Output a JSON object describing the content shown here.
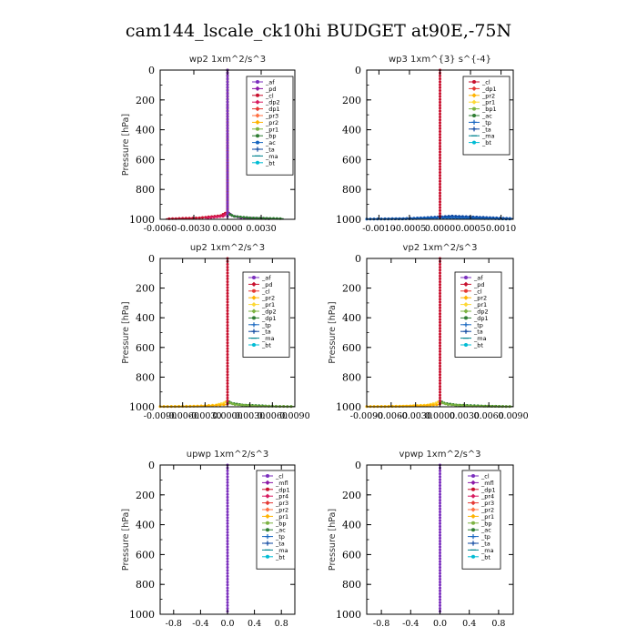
{
  "figure": {
    "title": "cam144_lscale_ck10hi  BUDGET at90E,-75N"
  },
  "chart_data": [
    {
      "type": "line",
      "title": "wp2   1xm^2/s^3",
      "ylabel": "Pressure [hPa]",
      "xlim": [
        -0.006,
        0.006
      ],
      "ylim": [
        1000,
        0
      ],
      "xticks": [
        -0.006,
        -0.003,
        0.0,
        0.003
      ],
      "xtick_labels": [
        "-0.0060",
        "-0.0030",
        "0.0000",
        "0.0030"
      ],
      "yticks": [
        0,
        200,
        400,
        600,
        800,
        1000
      ],
      "ytick_labels": [
        "0",
        "200",
        "400",
        "600",
        "800",
        "1000"
      ],
      "legend_position": "top-right",
      "series": [
        {
          "name": "_af",
          "color": "#7b2fbe",
          "marker": "dot"
        },
        {
          "name": "_pd",
          "color": "#8c1aa8",
          "marker": "diamond"
        },
        {
          "name": "_cl",
          "color": "#c8102e",
          "marker": "dot"
        },
        {
          "name": "_dp2",
          "color": "#d81b60",
          "marker": "diamond"
        },
        {
          "name": "_dp1",
          "color": "#e53935",
          "marker": "diamond"
        },
        {
          "name": "_pr3",
          "color": "#ff7043",
          "marker": "diamond"
        },
        {
          "name": "_pr2",
          "color": "#ffb300",
          "marker": "diamond"
        },
        {
          "name": "_pr1",
          "color": "#7cb342",
          "marker": "dot"
        },
        {
          "name": "_bp",
          "color": "#2e7d32",
          "marker": "dot"
        },
        {
          "name": "_ac",
          "color": "#1565c0",
          "marker": "dot"
        },
        {
          "name": "_ta",
          "color": "#0d47a1",
          "marker": "plus"
        },
        {
          "name": "_ma",
          "color": "#00838f",
          "marker": "dash"
        },
        {
          "name": "_bt",
          "color": "#00bcd4",
          "marker": "dot"
        }
      ],
      "curves": [
        {
          "color": "#8c1aa8",
          "points": [
            [
              0,
              0
            ],
            [
              0,
              950
            ],
            [
              0.0004,
              975
            ],
            [
              0.0012,
              990
            ],
            [
              0.004,
              997
            ]
          ]
        },
        {
          "color": "#c8102e",
          "points": [
            [
              0,
              0
            ],
            [
              0,
              950
            ],
            [
              -0.0006,
              975
            ],
            [
              -0.0025,
              990
            ],
            [
              -0.0055,
              997
            ]
          ]
        },
        {
          "color": "#d81b60",
          "points": [
            [
              0,
              0
            ],
            [
              0,
              955
            ],
            [
              -0.0004,
              980
            ],
            [
              -0.002,
              992
            ]
          ]
        },
        {
          "color": "#2e7d32",
          "points": [
            [
              0,
              0
            ],
            [
              0,
              960
            ],
            [
              0.0006,
              980
            ],
            [
              0.002,
              990
            ],
            [
              0.005,
              996
            ]
          ]
        },
        {
          "color": "#7b2fbe",
          "points": [
            [
              0,
              0
            ],
            [
              0,
              1000
            ]
          ]
        }
      ]
    },
    {
      "type": "line",
      "title": "wp3   1xm^{3} s^{-4}",
      "ylabel": "",
      "xlim": [
        -0.0012,
        0.0012
      ],
      "ylim": [
        1000,
        0
      ],
      "xticks": [
        -0.001,
        -0.0005,
        0.0,
        0.0005,
        0.001
      ],
      "xtick_labels": [
        "-0.0010",
        "-0.0005",
        "0.0000",
        "0.0005",
        "0.0010"
      ],
      "yticks": [
        0,
        200,
        400,
        600,
        800,
        1000
      ],
      "ytick_labels": [
        "0",
        "200",
        "400",
        "600",
        "800",
        "1000"
      ],
      "legend_position": "top-right",
      "series": [
        {
          "name": "_cl",
          "color": "#c8102e",
          "marker": "dot"
        },
        {
          "name": "_dp1",
          "color": "#e53935",
          "marker": "diamond"
        },
        {
          "name": "_pr2",
          "color": "#ffb300",
          "marker": "diamond"
        },
        {
          "name": "_pr1",
          "color": "#fdd835",
          "marker": "diamond"
        },
        {
          "name": "_bp1",
          "color": "#7cb342",
          "marker": "dot"
        },
        {
          "name": "_ac",
          "color": "#2e7d32",
          "marker": "dot"
        },
        {
          "name": "_tp",
          "color": "#1565c0",
          "marker": "plus"
        },
        {
          "name": "_ta",
          "color": "#0d47a1",
          "marker": "plus"
        },
        {
          "name": "_ma",
          "color": "#00838f",
          "marker": "dash"
        },
        {
          "name": "_bt",
          "color": "#00bcd4",
          "marker": "dot"
        }
      ],
      "curves": [
        {
          "color": "#0d47a1",
          "points": [
            [
              -0.0012,
              998
            ],
            [
              -0.0006,
              995
            ],
            [
              -0.0002,
              988
            ],
            [
              0.0002,
              978
            ],
            [
              0.0006,
              985
            ],
            [
              0.0012,
              995
            ]
          ]
        },
        {
          "color": "#1565c0",
          "points": [
            [
              -0.0012,
              999
            ],
            [
              -0.0005,
              997
            ],
            [
              0.0,
              990
            ],
            [
              0.0005,
              993
            ],
            [
              0.0012,
              999
            ]
          ]
        },
        {
          "color": "#c8102e",
          "points": [
            [
              0,
              0
            ],
            [
              0,
              1000
            ]
          ]
        }
      ]
    },
    {
      "type": "line",
      "title": "up2   1xm^2/s^3",
      "ylabel": "Pressure [hPa]",
      "xlim": [
        -0.009,
        0.009
      ],
      "ylim": [
        1000,
        0
      ],
      "xticks": [
        -0.009,
        -0.006,
        -0.003,
        0.0,
        0.003,
        0.006,
        0.009
      ],
      "xtick_labels": [
        "-0.0090",
        "-0.0060",
        "-0.0030",
        "0.0000",
        "0.0030",
        "0.0060",
        "0.0090"
      ],
      "yticks": [
        0,
        200,
        400,
        600,
        800,
        1000
      ],
      "ytick_labels": [
        "0",
        "200",
        "400",
        "600",
        "800",
        "1000"
      ],
      "legend_position": "top-right",
      "series": [
        {
          "name": "_af",
          "color": "#7b2fbe",
          "marker": "dot"
        },
        {
          "name": "_pd",
          "color": "#c8102e",
          "marker": "diamond"
        },
        {
          "name": "_cl",
          "color": "#e53935",
          "marker": "dot"
        },
        {
          "name": "_pr2",
          "color": "#ffb300",
          "marker": "diamond"
        },
        {
          "name": "_pr1",
          "color": "#fdd835",
          "marker": "diamond"
        },
        {
          "name": "_dp2",
          "color": "#7cb342",
          "marker": "diamond"
        },
        {
          "name": "_dp1",
          "color": "#2e7d32",
          "marker": "dot"
        },
        {
          "name": "_tp",
          "color": "#1565c0",
          "marker": "plus"
        },
        {
          "name": "_ta",
          "color": "#0d47a1",
          "marker": "plus"
        },
        {
          "name": "_ma",
          "color": "#00838f",
          "marker": "dash"
        },
        {
          "name": "_bt",
          "color": "#00bcd4",
          "marker": "dot"
        }
      ],
      "curves": [
        {
          "color": "#fdd835",
          "points": [
            [
              -0.009,
              998
            ],
            [
              -0.004,
              995
            ],
            [
              -0.0015,
              988
            ],
            [
              -0.0005,
              975
            ],
            [
              0,
              960
            ]
          ]
        },
        {
          "color": "#ffb300",
          "points": [
            [
              -0.009,
              999
            ],
            [
              -0.005,
              997
            ],
            [
              -0.002,
              992
            ],
            [
              0,
              985
            ]
          ]
        },
        {
          "color": "#2e7d32",
          "points": [
            [
              0,
              960
            ],
            [
              0.0005,
              975
            ],
            [
              0.002,
              988
            ],
            [
              0.006,
              996
            ],
            [
              0.009,
              998
            ]
          ]
        },
        {
          "color": "#7cb342",
          "points": [
            [
              0,
              970
            ],
            [
              0.001,
              985
            ],
            [
              0.004,
              995
            ],
            [
              0.009,
              999
            ]
          ]
        },
        {
          "color": "#c8102e",
          "points": [
            [
              0,
              0
            ],
            [
              0,
              1000
            ]
          ]
        }
      ]
    },
    {
      "type": "line",
      "title": "vp2   1xm^2/s^3",
      "ylabel": "Pressure [hPa]",
      "xlim": [
        -0.009,
        0.009
      ],
      "ylim": [
        1000,
        0
      ],
      "xticks": [
        -0.009,
        -0.006,
        -0.003,
        0.0,
        0.003,
        0.006,
        0.009
      ],
      "xtick_labels": [
        "-0.0090",
        "-0.0060",
        "-0.0030",
        "0.0000",
        "0.0030",
        "0.0060",
        "0.0090"
      ],
      "yticks": [
        0,
        200,
        400,
        600,
        800,
        1000
      ],
      "ytick_labels": [
        "0",
        "200",
        "400",
        "600",
        "800",
        "1000"
      ],
      "legend_position": "top-right",
      "series": [
        {
          "name": "_af",
          "color": "#7b2fbe",
          "marker": "dot"
        },
        {
          "name": "_pd",
          "color": "#c8102e",
          "marker": "diamond"
        },
        {
          "name": "_cl",
          "color": "#e53935",
          "marker": "dot"
        },
        {
          "name": "_pr2",
          "color": "#ffb300",
          "marker": "diamond"
        },
        {
          "name": "_pr1",
          "color": "#fdd835",
          "marker": "diamond"
        },
        {
          "name": "_dp2",
          "color": "#7cb342",
          "marker": "diamond"
        },
        {
          "name": "_dp1",
          "color": "#2e7d32",
          "marker": "dot"
        },
        {
          "name": "_tp",
          "color": "#1565c0",
          "marker": "plus"
        },
        {
          "name": "_ta",
          "color": "#0d47a1",
          "marker": "plus"
        },
        {
          "name": "_ma",
          "color": "#00838f",
          "marker": "dash"
        },
        {
          "name": "_bt",
          "color": "#00bcd4",
          "marker": "dot"
        }
      ],
      "curves": [
        {
          "color": "#fdd835",
          "points": [
            [
              -0.009,
              998
            ],
            [
              -0.004,
              995
            ],
            [
              -0.0015,
              988
            ],
            [
              -0.0005,
              975
            ],
            [
              0,
              960
            ]
          ]
        },
        {
          "color": "#ffb300",
          "points": [
            [
              -0.009,
              999
            ],
            [
              -0.005,
              997
            ],
            [
              -0.002,
              992
            ],
            [
              0,
              985
            ]
          ]
        },
        {
          "color": "#2e7d32",
          "points": [
            [
              0,
              960
            ],
            [
              0.0005,
              975
            ],
            [
              0.002,
              988
            ],
            [
              0.006,
              996
            ],
            [
              0.009,
              998
            ]
          ]
        },
        {
          "color": "#7cb342",
          "points": [
            [
              0,
              970
            ],
            [
              0.001,
              985
            ],
            [
              0.004,
              995
            ],
            [
              0.009,
              999
            ]
          ]
        },
        {
          "color": "#c8102e",
          "points": [
            [
              0,
              0
            ],
            [
              0,
              1000
            ]
          ]
        }
      ]
    },
    {
      "type": "line",
      "title": "upwp   1xm^2/s^3",
      "ylabel": "Pressure [hPa]",
      "xlim": [
        -1.0,
        1.0
      ],
      "ylim": [
        1000,
        0
      ],
      "xticks": [
        -0.8,
        -0.4,
        0.0,
        0.4,
        0.8
      ],
      "xtick_labels": [
        "-0.8",
        "-0.4",
        "0.0",
        "0.4",
        "0.8"
      ],
      "yticks": [
        0,
        200,
        400,
        600,
        800,
        1000
      ],
      "ytick_labels": [
        "0",
        "200",
        "400",
        "600",
        "800",
        "1000"
      ],
      "legend_position": "top-right",
      "series": [
        {
          "name": "_cl",
          "color": "#7b2fbe",
          "marker": "dot"
        },
        {
          "name": "_mfl",
          "color": "#8c1aa8",
          "marker": "diamond"
        },
        {
          "name": "_dp1",
          "color": "#c8102e",
          "marker": "dot"
        },
        {
          "name": "_pr4",
          "color": "#d81b60",
          "marker": "diamond"
        },
        {
          "name": "_pr3",
          "color": "#e53935",
          "marker": "diamond"
        },
        {
          "name": "_pr2",
          "color": "#ff7043",
          "marker": "diamond"
        },
        {
          "name": "_pr1",
          "color": "#ffb300",
          "marker": "diamond"
        },
        {
          "name": "_bp",
          "color": "#7cb342",
          "marker": "dot"
        },
        {
          "name": "_ac",
          "color": "#2e7d32",
          "marker": "dot"
        },
        {
          "name": "_tp",
          "color": "#1565c0",
          "marker": "plus"
        },
        {
          "name": "_ta",
          "color": "#0d47a1",
          "marker": "plus"
        },
        {
          "name": "_ma",
          "color": "#00838f",
          "marker": "dash"
        },
        {
          "name": "_bt",
          "color": "#00bcd4",
          "marker": "dot"
        }
      ],
      "curves": [
        {
          "color": "#7b2fbe",
          "points": [
            [
              0,
              0
            ],
            [
              0,
              1000
            ]
          ]
        }
      ]
    },
    {
      "type": "line",
      "title": "vpwp   1xm^2/s^3",
      "ylabel": "Pressure [hPa]",
      "xlim": [
        -1.0,
        1.0
      ],
      "ylim": [
        1000,
        0
      ],
      "xticks": [
        -0.8,
        -0.4,
        0.0,
        0.4,
        0.8
      ],
      "xtick_labels": [
        "-0.8",
        "-0.4",
        "0.0",
        "0.4",
        "0.8"
      ],
      "yticks": [
        0,
        200,
        400,
        600,
        800,
        1000
      ],
      "ytick_labels": [
        "0",
        "200",
        "400",
        "600",
        "800",
        "1000"
      ],
      "legend_position": "top-right",
      "series": [
        {
          "name": "_cl",
          "color": "#7b2fbe",
          "marker": "dot"
        },
        {
          "name": "_mfl",
          "color": "#8c1aa8",
          "marker": "diamond"
        },
        {
          "name": "_dp1",
          "color": "#c8102e",
          "marker": "dot"
        },
        {
          "name": "_pr4",
          "color": "#d81b60",
          "marker": "diamond"
        },
        {
          "name": "_pr3",
          "color": "#e53935",
          "marker": "diamond"
        },
        {
          "name": "_pr2",
          "color": "#ff7043",
          "marker": "diamond"
        },
        {
          "name": "_pr1",
          "color": "#ffb300",
          "marker": "diamond"
        },
        {
          "name": "_bp",
          "color": "#7cb342",
          "marker": "dot"
        },
        {
          "name": "_ac",
          "color": "#2e7d32",
          "marker": "dot"
        },
        {
          "name": "_tp",
          "color": "#1565c0",
          "marker": "plus"
        },
        {
          "name": "_ta",
          "color": "#0d47a1",
          "marker": "plus"
        },
        {
          "name": "_ma",
          "color": "#00838f",
          "marker": "dash"
        },
        {
          "name": "_bt",
          "color": "#00bcd4",
          "marker": "dot"
        }
      ],
      "curves": [
        {
          "color": "#7b2fbe",
          "points": [
            [
              0,
              0
            ],
            [
              0,
              1000
            ]
          ]
        }
      ]
    }
  ]
}
